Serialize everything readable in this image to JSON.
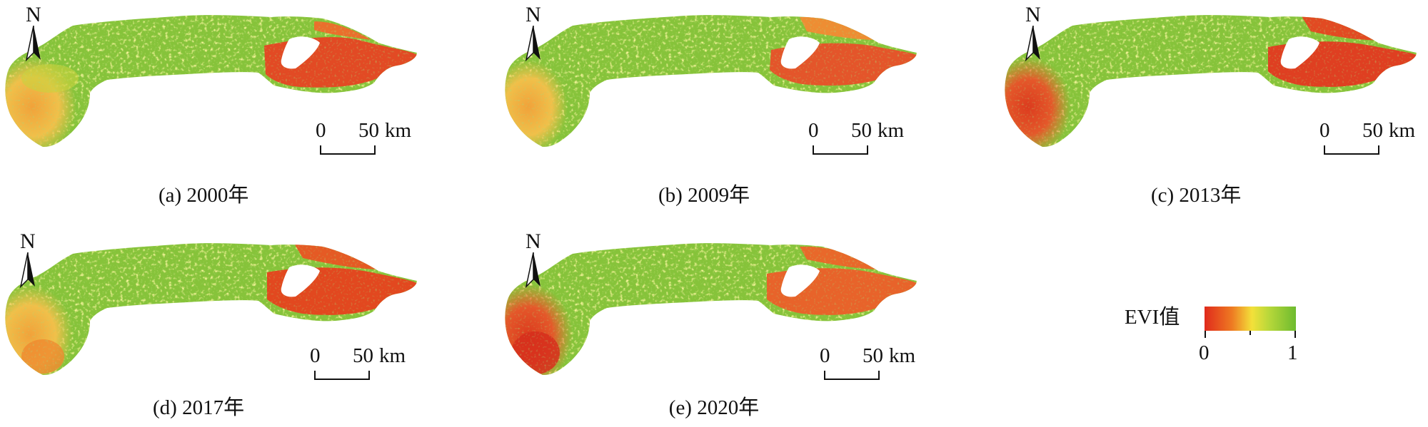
{
  "north_label": "N",
  "scale": {
    "zero": "0",
    "fifty": "50",
    "unit": "km"
  },
  "panels": [
    {
      "caption": "(a) 2000年"
    },
    {
      "caption": "(b) 2009年"
    },
    {
      "caption": "(c) 2013年"
    },
    {
      "caption": "(d) 2017年"
    },
    {
      "caption": "(e) 2020年"
    }
  ],
  "legend": {
    "title": "EVI值",
    "min": "0",
    "max": "1"
  },
  "colors": {
    "low": "#e02a1c",
    "mid_low": "#ee7a22",
    "mid": "#f3e13a",
    "mid_high": "#b9d83a",
    "high": "#6dbb2f"
  }
}
